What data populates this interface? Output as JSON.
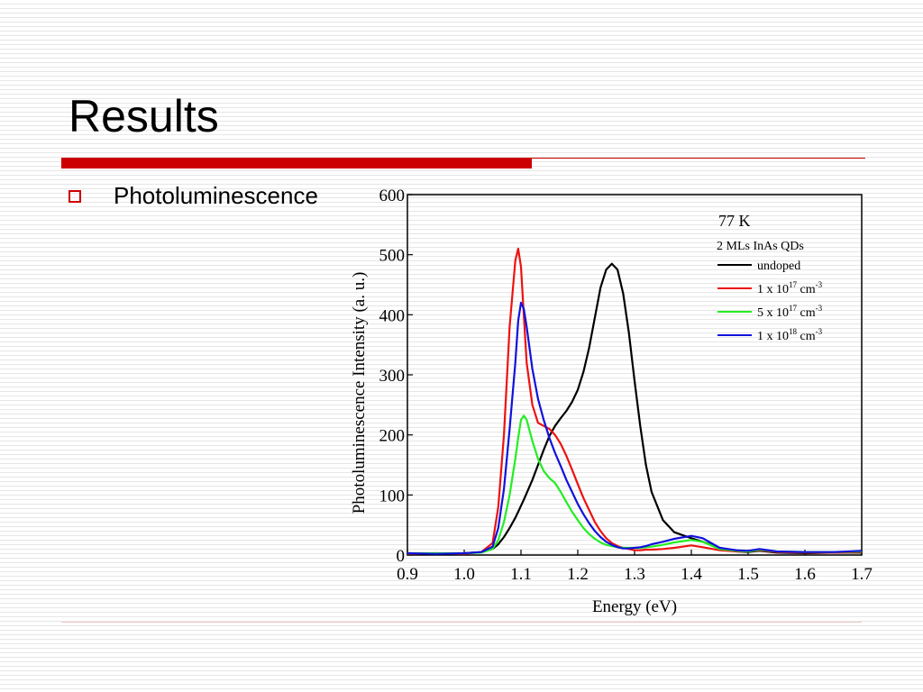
{
  "slide": {
    "title": "Results",
    "bullet": "Photoluminescence"
  },
  "colors": {
    "accent": "#cc0000",
    "undoped": "#000000",
    "dope_1e17": "#ee1111",
    "dope_5e17": "#22ee22",
    "dope_1e18": "#1111dd"
  },
  "chart_data": {
    "type": "line",
    "xlabel": "Energy (eV)",
    "ylabel": "Photoluminescence Intensity (a. u.)",
    "xlim": [
      0.9,
      1.7
    ],
    "ylim": [
      0,
      600
    ],
    "x_ticks": [
      "0.9",
      "1.0",
      "1.1",
      "1.2",
      "1.3",
      "1.4",
      "1.5",
      "1.6",
      "1.7"
    ],
    "y_ticks": [
      "0",
      "100",
      "200",
      "300",
      "400",
      "500",
      "600"
    ],
    "grid": false,
    "legend_position": "top-right",
    "annotation_temp": "77 K",
    "annotation_sample": "2 MLs InAs QDs",
    "legend": [
      {
        "key": "undoped",
        "text": "undoped",
        "sup": "",
        "tail": "",
        "tail_sup": ""
      },
      {
        "key": "dope_1e17",
        "text": "1 x 10",
        "sup": "17",
        "tail": " cm",
        "tail_sup": "-3"
      },
      {
        "key": "dope_5e17",
        "text": "5 x 10",
        "sup": "17",
        "tail": " cm",
        "tail_sup": "-3"
      },
      {
        "key": "dope_1e18",
        "text": "1 x 10",
        "sup": "18",
        "tail": " cm",
        "tail_sup": "-3"
      }
    ],
    "x": [
      0.9,
      0.95,
      1.0,
      1.03,
      1.05,
      1.06,
      1.07,
      1.08,
      1.09,
      1.095,
      1.1,
      1.105,
      1.11,
      1.12,
      1.13,
      1.14,
      1.15,
      1.16,
      1.17,
      1.18,
      1.19,
      1.2,
      1.21,
      1.22,
      1.23,
      1.24,
      1.25,
      1.26,
      1.27,
      1.28,
      1.29,
      1.3,
      1.31,
      1.32,
      1.33,
      1.35,
      1.37,
      1.4,
      1.42,
      1.45,
      1.48,
      1.5,
      1.52,
      1.55,
      1.6,
      1.65,
      1.7
    ],
    "series": [
      {
        "key": "undoped",
        "values": [
          3,
          2,
          3,
          5,
          10,
          18,
          30,
          45,
          62,
          72,
          82,
          92,
          103,
          125,
          150,
          175,
          198,
          215,
          228,
          240,
          255,
          275,
          305,
          345,
          395,
          445,
          475,
          485,
          475,
          435,
          370,
          290,
          215,
          150,
          105,
          58,
          38,
          28,
          22,
          12,
          6,
          5,
          7,
          4,
          3,
          4,
          4
        ]
      },
      {
        "key": "dope_1e17",
        "values": [
          2,
          3,
          2,
          5,
          20,
          80,
          200,
          380,
          490,
          510,
          480,
          400,
          320,
          250,
          220,
          215,
          210,
          200,
          185,
          165,
          142,
          118,
          95,
          75,
          55,
          40,
          28,
          20,
          15,
          12,
          10,
          8,
          8,
          9,
          9,
          10,
          12,
          16,
          13,
          8,
          6,
          6,
          8,
          5,
          4,
          4,
          5
        ]
      },
      {
        "key": "dope_5e17",
        "values": [
          3,
          3,
          3,
          4,
          10,
          25,
          55,
          100,
          160,
          195,
          225,
          232,
          225,
          190,
          160,
          140,
          128,
          120,
          105,
          88,
          72,
          58,
          45,
          35,
          27,
          21,
          17,
          15,
          13,
          12,
          12,
          12,
          12,
          13,
          14,
          17,
          21,
          25,
          22,
          10,
          7,
          6,
          9,
          6,
          5,
          5,
          6
        ]
      },
      {
        "key": "dope_1e18",
        "values": [
          3,
          2,
          3,
          5,
          14,
          45,
          110,
          210,
          320,
          390,
          420,
          410,
          380,
          310,
          260,
          225,
          195,
          170,
          148,
          125,
          105,
          85,
          68,
          53,
          40,
          30,
          22,
          17,
          13,
          11,
          11,
          12,
          13,
          15,
          18,
          22,
          27,
          32,
          28,
          12,
          8,
          7,
          10,
          6,
          5,
          5,
          7
        ]
      }
    ]
  }
}
